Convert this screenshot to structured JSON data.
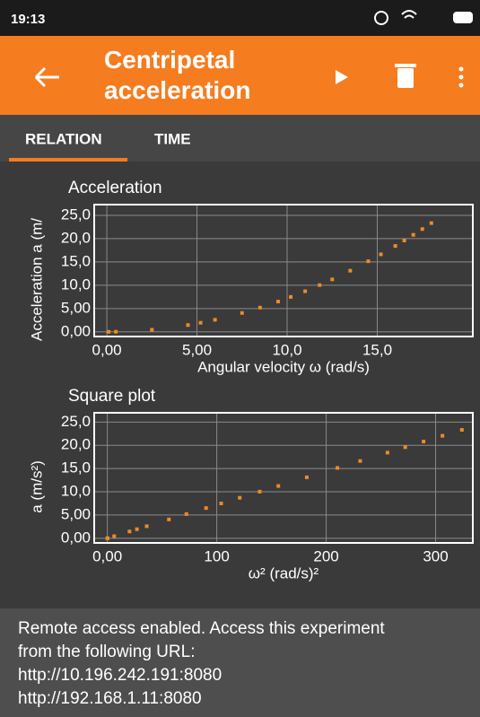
{
  "status_bar": {
    "time": "19:13"
  },
  "toolbar": {
    "title": "Centripetal acceleration"
  },
  "tabs": [
    "RELATION",
    "TIME"
  ],
  "chart_data": [
    {
      "type": "scatter",
      "title": "Acceleration",
      "x_label": "Angular velocity ω (rad/s)",
      "y_label": "Acceleration a (m/",
      "x": [
        0.1,
        0.5,
        2.5,
        4.5,
        5.2,
        6,
        7.5,
        8.5,
        9.5,
        10.2,
        11,
        11.8,
        12.5,
        13.5,
        14.5,
        15.2,
        16,
        16.5,
        17,
        17.5,
        18
      ],
      "values": [
        0.0,
        0.02,
        0.45,
        1.46,
        1.95,
        2.59,
        4.05,
        5.2,
        6.5,
        7.49,
        8.71,
        10.03,
        11.25,
        13.12,
        15.14,
        16.63,
        18.43,
        19.6,
        20.81,
        22.05,
        23.33
      ],
      "color": "#f08a24",
      "grid": true,
      "xlim": [
        -0.7,
        20.3
      ],
      "ylim": [
        -1,
        27.3
      ],
      "xticks": [
        {
          "value": 0,
          "label": "0,00"
        },
        {
          "value": 5,
          "label": "5,00"
        },
        {
          "value": 10,
          "label": "10,0"
        },
        {
          "value": 15,
          "label": "15,0"
        }
      ],
      "yticks": [
        {
          "value": 0,
          "label": "0,00"
        },
        {
          "value": 5,
          "label": "5,00"
        },
        {
          "value": 10,
          "label": "10,0"
        },
        {
          "value": 15,
          "label": "15,0"
        },
        {
          "value": 20,
          "label": "20,0"
        },
        {
          "value": 25,
          "label": "25,0"
        }
      ]
    },
    {
      "type": "scatter",
      "title": "Square plot",
      "x_label": "ω² (rad/s)²",
      "y_label": "a (m/s²)",
      "x": [
        0.01,
        0.25,
        6.25,
        20.25,
        27.04,
        36,
        56.25,
        72.25,
        90.25,
        104.04,
        121,
        139.24,
        156.25,
        182.25,
        210.25,
        231.04,
        256,
        272.25,
        289,
        306.25,
        324
      ],
      "values": [
        0.0,
        0.02,
        0.45,
        1.46,
        1.95,
        2.59,
        4.05,
        5.2,
        6.5,
        7.49,
        8.71,
        10.03,
        11.25,
        13.12,
        15.14,
        16.63,
        18.43,
        19.6,
        20.81,
        22.05,
        23.33
      ],
      "color": "#f08a24",
      "grid": true,
      "xlim": [
        -12,
        334
      ],
      "ylim": [
        -1,
        27
      ],
      "xticks": [
        {
          "value": 0,
          "label": "0,00"
        },
        100,
        200,
        300
      ],
      "yticks": [
        {
          "value": 0,
          "label": "0,00"
        },
        {
          "value": 5,
          "label": "5,00"
        },
        {
          "value": 10,
          "label": "10,0"
        },
        {
          "value": 15,
          "label": "15,0"
        },
        {
          "value": 20,
          "label": "20,0"
        },
        {
          "value": 25,
          "label": "25,0"
        }
      ]
    }
  ],
  "footer": {
    "message": "Remote access enabled. Access this experiment from the following URL:",
    "urls": [
      "http://10.196.242.191:8080",
      "http://192.168.1.11:8080"
    ]
  }
}
